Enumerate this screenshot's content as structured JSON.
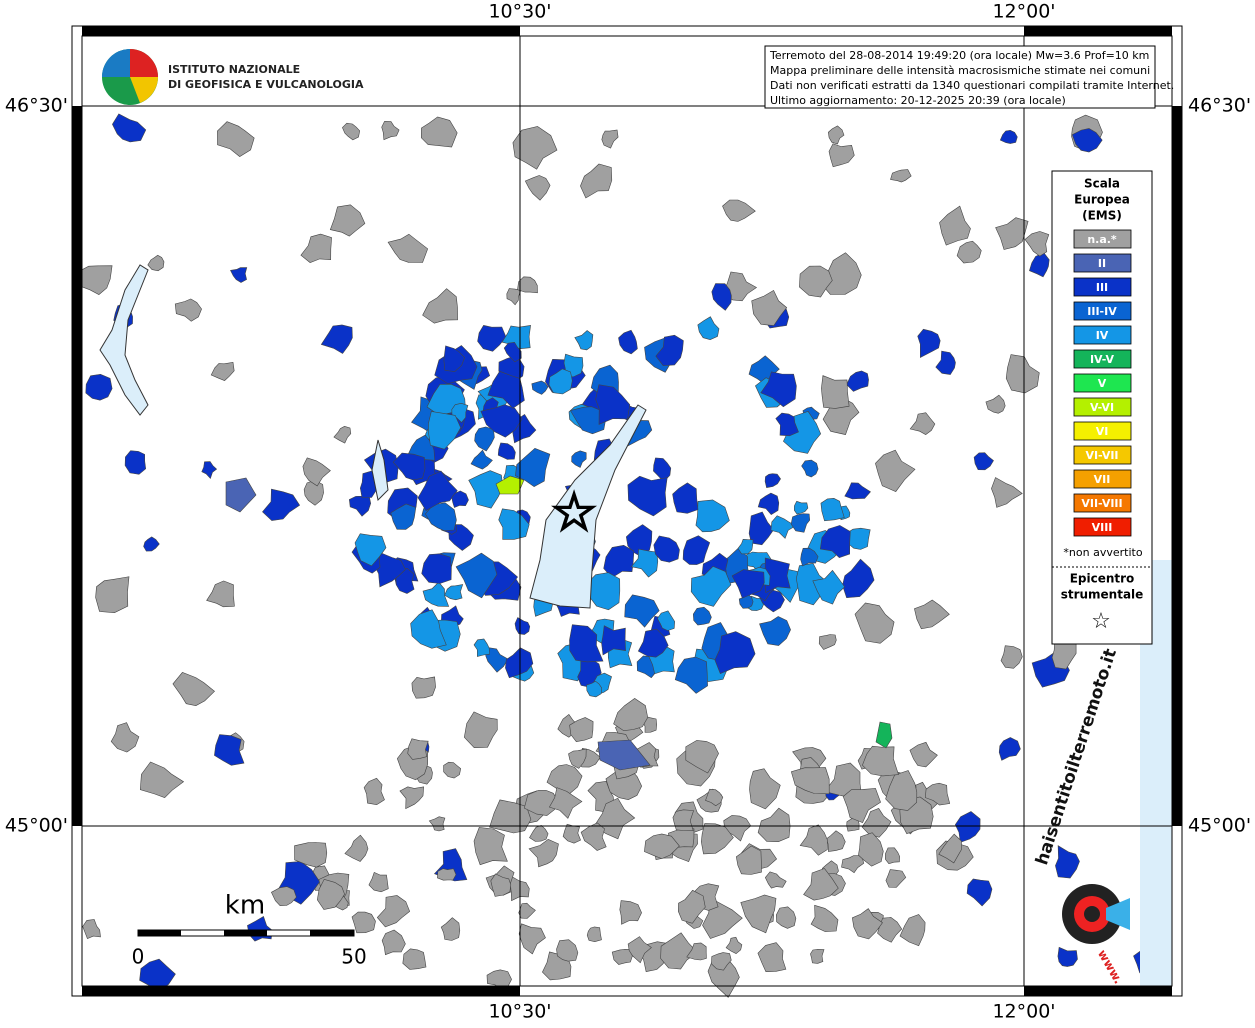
{
  "map": {
    "lon_labels": [
      "10°30'",
      "12°00'"
    ],
    "lat_labels": [
      "46°30'",
      "45°00'"
    ],
    "logo_ingv": [
      "ISTITUTO NAZIONALE",
      "DI GEOFISICA E VULCANOLOGIA"
    ],
    "info": [
      "Terremoto del 28-08-2014 19:49:20 (ora locale) Mw=3.6 Prof=10 km",
      "Mappa preliminare delle intensità macrosismiche stimate nei comuni",
      "Dati non verificati estratti da 1340 questionari compilati tramite Internet.",
      "Ultimo aggiornamento: 20-12-2025 20:39 (ora locale)"
    ],
    "legend": {
      "title": [
        "Scala",
        "Europea",
        "(EMS)"
      ],
      "items": [
        {
          "label": "n.a.*",
          "color": "#a0a0a0"
        },
        {
          "label": "II",
          "color": "#4a64b4"
        },
        {
          "label": "III",
          "color": "#0a32c8"
        },
        {
          "label": "III-IV",
          "color": "#0a64d2"
        },
        {
          "label": "IV",
          "color": "#1496e6"
        },
        {
          "label": "IV-V",
          "color": "#14b45a"
        },
        {
          "label": "V",
          "color": "#1ee650"
        },
        {
          "label": "V-VI",
          "color": "#b4f000"
        },
        {
          "label": "VI",
          "color": "#f5f000"
        },
        {
          "label": "VI-VII",
          "color": "#f5c800"
        },
        {
          "label": "VII",
          "color": "#f5a000"
        },
        {
          "label": "VII-VIII",
          "color": "#f57800"
        },
        {
          "label": "VIII",
          "color": "#f01e00"
        }
      ],
      "note": "*non avvertito",
      "epicenter": [
        "Epicentro",
        "strumentale"
      ],
      "epicenter_symbol": "☆"
    },
    "scale": {
      "unit": "km",
      "ticks": [
        0,
        50
      ]
    },
    "logo_hsit": {
      "text": "haisentitoilterremoto.it",
      "www": "www."
    }
  }
}
